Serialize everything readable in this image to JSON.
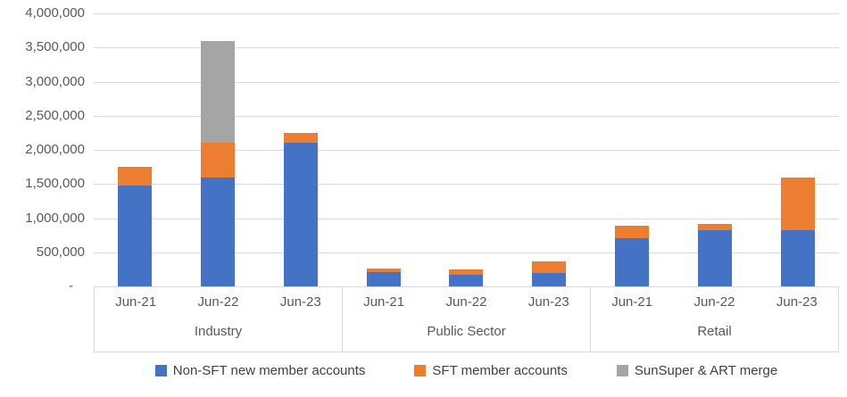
{
  "chart_data": {
    "type": "bar",
    "stacked": true,
    "title": "",
    "groups": [
      "Industry",
      "Public Sector",
      "Retail"
    ],
    "categories": [
      "Jun-21",
      "Jun-22",
      "Jun-23"
    ],
    "series": [
      {
        "name": "Non-SFT new member accounts",
        "color": "#4472C4",
        "values": [
          1480000,
          1600000,
          2100000,
          210000,
          175000,
          200000,
          700000,
          830000,
          820000
        ]
      },
      {
        "name": "SFT member accounts",
        "color": "#ED7D31",
        "values": [
          270000,
          500000,
          150000,
          55000,
          75000,
          160000,
          190000,
          90000,
          780000
        ]
      },
      {
        "name": "SunSuper & ART merge",
        "color": "#A5A5A5",
        "values": [
          0,
          1490000,
          0,
          0,
          0,
          0,
          0,
          0,
          0
        ]
      }
    ],
    "y_axis": {
      "min": 0,
      "max": 4000000,
      "step": 500000,
      "tick_labels": [
        "4,000,000",
        "3,500,000",
        "3,000,000",
        "2,500,000",
        "2,000,000",
        "1,500,000",
        "1,000,000",
        "500,000",
        "-"
      ]
    },
    "legend_position": "bottom",
    "grid": true
  },
  "colors": {
    "gridline": "#D9D9D9",
    "axis_box_border": "#D9D9D9",
    "axis_text": "#595959",
    "legend_text": "#404040"
  }
}
